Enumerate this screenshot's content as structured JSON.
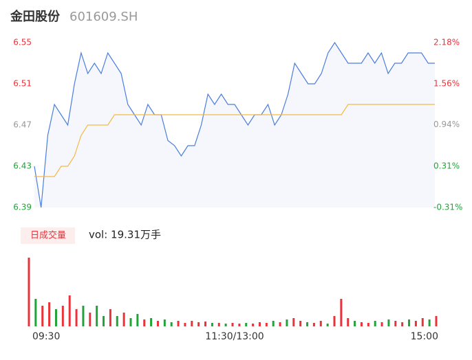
{
  "chart_data": [
    {
      "type": "line",
      "title": "金田股份",
      "subtitle": "601609.SH",
      "x": [
        0,
        1,
        2,
        3,
        4,
        5,
        6,
        7,
        8,
        9,
        10,
        11,
        12,
        13,
        14,
        15,
        16,
        17,
        18,
        19,
        20,
        21,
        22,
        23,
        24,
        25,
        26,
        27,
        28,
        29,
        30,
        31,
        32,
        33,
        34,
        35,
        36,
        37,
        38,
        39,
        40,
        41,
        42,
        43,
        44,
        45,
        46,
        47,
        48,
        49,
        50,
        51,
        52,
        53,
        54,
        55,
        56,
        57,
        58,
        59,
        60
      ],
      "xlim": [
        0,
        60
      ],
      "xticks": [
        {
          "value": 0,
          "label": "09:30"
        },
        {
          "value": 30,
          "label": "11:30/13:00"
        },
        {
          "value": 60,
          "label": "15:00"
        }
      ],
      "series": [
        {
          "color": "#4a7de0",
          "values": [
            6.43,
            6.39,
            6.46,
            6.49,
            6.48,
            6.47,
            6.51,
            6.54,
            6.52,
            6.53,
            6.52,
            6.54,
            6.53,
            6.52,
            6.49,
            6.48,
            6.47,
            6.49,
            6.48,
            6.48,
            6.455,
            6.45,
            6.44,
            6.45,
            6.45,
            6.47,
            6.5,
            6.49,
            6.5,
            6.49,
            6.49,
            6.48,
            6.47,
            6.48,
            6.48,
            6.49,
            6.47,
            6.48,
            6.5,
            6.53,
            6.52,
            6.51,
            6.51,
            6.52,
            6.54,
            6.55,
            6.54,
            6.53,
            6.53,
            6.53,
            6.54,
            6.53,
            6.54,
            6.52,
            6.53,
            6.53,
            6.54,
            6.54,
            6.54,
            6.53,
            6.53
          ]
        },
        {
          "color": "#f5b942",
          "values": [
            6.42,
            6.42,
            6.42,
            6.42,
            6.43,
            6.43,
            6.44,
            6.46,
            6.47,
            6.47,
            6.47,
            6.47,
            6.48,
            6.48,
            6.48,
            6.48,
            6.48,
            6.48,
            6.48,
            6.48,
            6.48,
            6.48,
            6.48,
            6.48,
            6.48,
            6.48,
            6.48,
            6.48,
            6.48,
            6.48,
            6.48,
            6.48,
            6.48,
            6.48,
            6.48,
            6.48,
            6.48,
            6.48,
            6.48,
            6.48,
            6.48,
            6.48,
            6.48,
            6.48,
            6.48,
            6.48,
            6.48,
            6.49,
            6.49,
            6.49,
            6.49,
            6.49,
            6.49,
            6.49,
            6.49,
            6.49,
            6.49,
            6.49,
            6.49,
            6.49,
            6.49
          ]
        }
      ],
      "area_color": "#f5f7fc",
      "ylim": [
        6.39,
        6.55
      ],
      "yticks": [
        6.55,
        6.51,
        6.47,
        6.43,
        6.39
      ],
      "y2lim": [
        -0.31,
        2.18
      ],
      "y2ticks": [
        {
          "value": 2.18,
          "label": "2.18%"
        },
        {
          "value": 1.56,
          "label": "1.56%"
        },
        {
          "value": 0.94,
          "label": "0.94%"
        },
        {
          "value": 0.31,
          "label": "0.31%"
        },
        {
          "value": -0.31,
          "label": "-0.31%"
        }
      ],
      "ytick_colors": [
        "#e8333a",
        "#e8333a",
        "#999999",
        "#22a33a",
        "#22a33a"
      ]
    },
    {
      "type": "bar",
      "title": "日成交量",
      "annotation": "vol: 19.31万手",
      "ylim": [
        0,
        1
      ],
      "values": [
        1.0,
        0.4,
        0.3,
        0.35,
        0.25,
        0.3,
        0.45,
        0.25,
        0.3,
        0.2,
        0.3,
        0.15,
        0.25,
        0.15,
        0.2,
        0.12,
        0.18,
        0.1,
        0.12,
        0.08,
        0.1,
        0.06,
        0.08,
        0.05,
        0.08,
        0.06,
        0.07,
        0.05,
        0.05,
        0.04,
        0.05,
        0.04,
        0.05,
        0.04,
        0.06,
        0.05,
        0.08,
        0.06,
        0.1,
        0.12,
        0.08,
        0.06,
        0.05,
        0.08,
        0.04,
        0.15,
        0.4,
        0.12,
        0.08,
        0.06,
        0.05,
        0.08,
        0.06,
        0.1,
        0.08,
        0.06,
        0.1,
        0.08,
        0.12,
        0.1,
        0.15
      ],
      "colors": [
        "#e8333a",
        "#22a33a",
        "#e8333a",
        "#e8333a",
        "#22a33a",
        "#e8333a",
        "#e8333a",
        "#e8333a",
        "#22a33a",
        "#e8333a",
        "#22a33a",
        "#22a33a",
        "#e8333a",
        "#22a33a",
        "#e8333a",
        "#22a33a",
        "#22a33a",
        "#e8333a",
        "#22a33a",
        "#e8333a",
        "#22a33a",
        "#22a33a",
        "#e8333a",
        "#e8333a",
        "#e8333a",
        "#e8333a",
        "#e8333a",
        "#22a33a",
        "#e8333a",
        "#22a33a",
        "#e8333a",
        "#e8333a",
        "#22a33a",
        "#e8333a",
        "#e8333a",
        "#e8333a",
        "#22a33a",
        "#e8333a",
        "#22a33a",
        "#e8333a",
        "#e8333a",
        "#22a33a",
        "#e8333a",
        "#e8333a",
        "#22a33a",
        "#e8333a",
        "#e8333a",
        "#e8333a",
        "#22a33a",
        "#e8333a",
        "#e8333a",
        "#22a33a",
        "#e8333a",
        "#22a33a",
        "#e8333a",
        "#e8333a",
        "#22a33a",
        "#e8333a",
        "#e8333a",
        "#22a33a",
        "#e8333a"
      ]
    }
  ]
}
